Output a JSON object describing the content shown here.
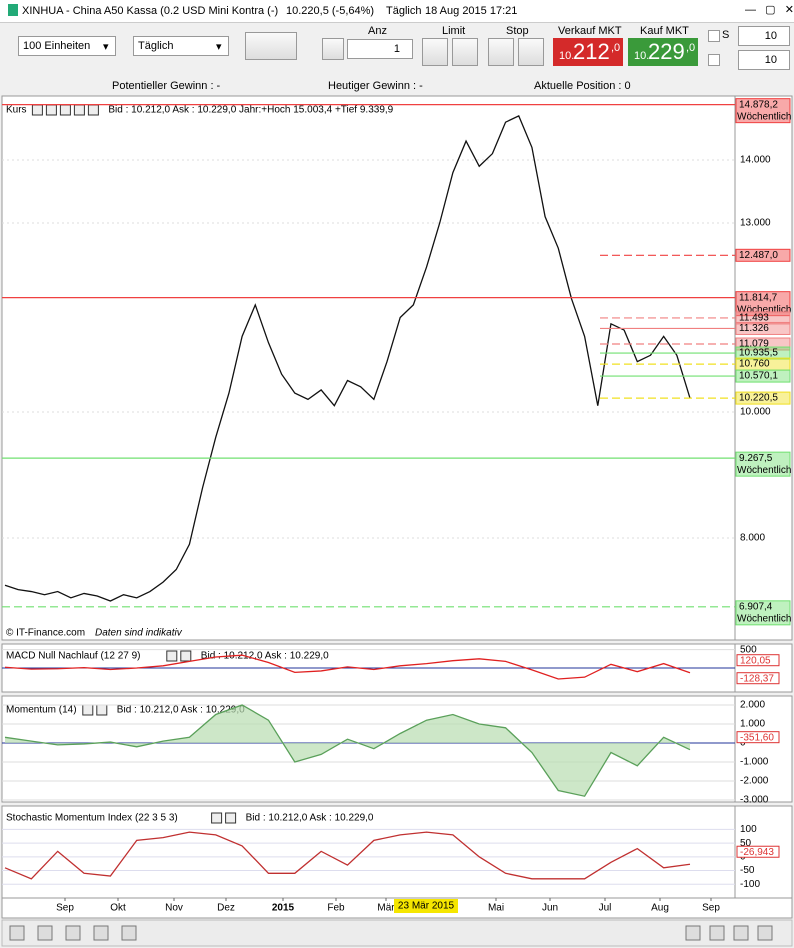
{
  "title_bar": {
    "text": "XINHUA - China A50 Kassa (0.2 USD Mini Kontra (-)",
    "quote": "10.220,5 (-5,64%)",
    "period": "Täglich",
    "datetime": "18 Aug 2015 17:21"
  },
  "toolbar": {
    "units": "100 Einheiten",
    "interval": "Täglich",
    "anz_label": "Anz",
    "anz_value": "1",
    "limit_label": "Limit",
    "stop_label": "Stop",
    "sell_label": "Verkauf MKT",
    "sell_prefix": "10.",
    "sell_big": "212",
    "sell_suffix": ",0",
    "buy_label": "Kauf MKT",
    "buy_prefix": "10.",
    "buy_big": "229",
    "buy_suffix": ",0",
    "s_label": "S",
    "s_value": "10",
    "t_value": "10"
  },
  "status": {
    "potential": "Potentieller Gewinn : -",
    "today": "Heutiger Gewinn : -",
    "position": "Aktuelle Position : 0"
  },
  "price_panel": {
    "name": "Kurs",
    "info": "Bid : 10.212,0 Ask : 10.229,0 Jahr:+Hoch 15.003,4 +Tief 9.339,9",
    "credit": "© IT-Finance.com",
    "disclaimer": "Daten sind indikativ",
    "color": "#111111",
    "ylim": [
      6381,
      14952
    ],
    "yticks": [
      {
        "value": 14000,
        "label": "14.000"
      },
      {
        "value": 13000,
        "label": "13.000"
      },
      {
        "value": 10000,
        "label": "10.000"
      },
      {
        "value": 8000,
        "label": "8.000"
      }
    ],
    "values": [
      7250,
      7180,
      7150,
      7100,
      7150,
      7050,
      7120,
      7080,
      7000,
      7100,
      7050,
      7150,
      7300,
      7500,
      7900,
      8800,
      9600,
      10300,
      11200,
      11700,
      11100,
      10600,
      10300,
      10200,
      10350,
      10100,
      10500,
      10400,
      10200,
      10800,
      11500,
      11700,
      12300,
      13000,
      13800,
      14300,
      13900,
      14100,
      14600,
      14700,
      14200,
      13100,
      12600,
      11800,
      11200,
      10100,
      11400,
      11300,
      10800,
      10900,
      11200,
      10900,
      10220
    ],
    "levels": [
      {
        "value": 14878.2,
        "label": "14.878,2",
        "note": "Wöchentlich",
        "color": "#f04040"
      },
      {
        "value": 12487.0,
        "label": "12.487,0",
        "color": "#f04040"
      },
      {
        "value": 11814.7,
        "label": "11.814,7",
        "note": "Wöchentlich",
        "color": "#f04040"
      },
      {
        "value": 11493,
        "label": "11.493",
        "color": "#f08080"
      },
      {
        "value": 11326,
        "label": "11.326",
        "color": "#f08080"
      },
      {
        "value": 11079,
        "label": "11.079",
        "color": "#f08080"
      },
      {
        "value": 10935.5,
        "label": "10.935,5",
        "color": "#70e070"
      },
      {
        "value": 10760,
        "label": "10.760",
        "color": "#f0e020"
      },
      {
        "value": 10570.1,
        "label": "10.570,1",
        "color": "#70e070"
      },
      {
        "value": 10220.5,
        "label": "10.220,5",
        "color": "#f0e020"
      },
      {
        "value": 9267.5,
        "label": "9.267,5",
        "note": "Wöchentlich",
        "color": "#70e070"
      },
      {
        "value": 6907.4,
        "label": "6.907,4",
        "note": "Wöchentlich",
        "color": "#70e070"
      }
    ]
  },
  "macd_panel": {
    "name": "MACD Null Nachlauf (12 27 9)",
    "info": "Bid : 10.212,0 Ask : 10.229,0",
    "color": "#e02020",
    "ylim": [
      -600,
      600
    ],
    "yticks": [
      500
    ],
    "values": [
      20,
      -30,
      -20,
      10,
      -40,
      0,
      60,
      180,
      300,
      350,
      150,
      -120,
      -80,
      30,
      -40,
      60,
      120,
      200,
      250,
      180,
      -50,
      -300,
      -250,
      100,
      -100,
      120,
      -128.37
    ],
    "last_labels": [
      "120,05",
      "-128,37"
    ]
  },
  "momentum_panel": {
    "name": "Momentum (14)",
    "info": "Bid : 10.212,0 Ask : 10.229,0",
    "color": "#5aa05a",
    "ylim": [
      -3000,
      2263
    ],
    "yticks": [
      {
        "value": 2000,
        "label": "2.000"
      },
      {
        "value": 1000,
        "label": "1.000"
      },
      0,
      {
        "value": -1000,
        "label": "-1.000"
      },
      {
        "value": -2000,
        "label": "-2.000"
      },
      {
        "value": -3000,
        "label": "-3.000"
      }
    ],
    "values": [
      300,
      100,
      -100,
      -50,
      50,
      -200,
      100,
      300,
      1500,
      2000,
      1200,
      -1000,
      -600,
      200,
      -300,
      500,
      1200,
      1500,
      1000,
      800,
      -500,
      -2500,
      -2800,
      -500,
      -1200,
      300,
      -351.6
    ],
    "last_labels": [
      "-351,60"
    ]
  },
  "stoch_panel": {
    "name": "Stochastic Momentum Index (22 3 5 3)",
    "info": "Bid : 10.212,0 Ask : 10.229,0",
    "color": "#c03030",
    "ylim": [
      -150,
      178
    ],
    "yticks": [
      100,
      50,
      0,
      -50,
      -100
    ],
    "values": [
      -40,
      -80,
      20,
      -60,
      -70,
      60,
      70,
      90,
      80,
      40,
      -60,
      -60,
      20,
      -30,
      60,
      80,
      90,
      80,
      0,
      -60,
      -80,
      -80,
      -80,
      -20,
      30,
      -40,
      -26.943
    ],
    "last_labels": [
      "-26,943"
    ]
  },
  "x_axis": {
    "months": [
      "Sep",
      "Okt",
      "Nov",
      "Dez",
      "2015",
      "Feb",
      "Mär",
      "Mai",
      "Jun",
      "Jul",
      "Aug",
      "Sep"
    ],
    "cursor_label": "23 Mär 2015"
  }
}
